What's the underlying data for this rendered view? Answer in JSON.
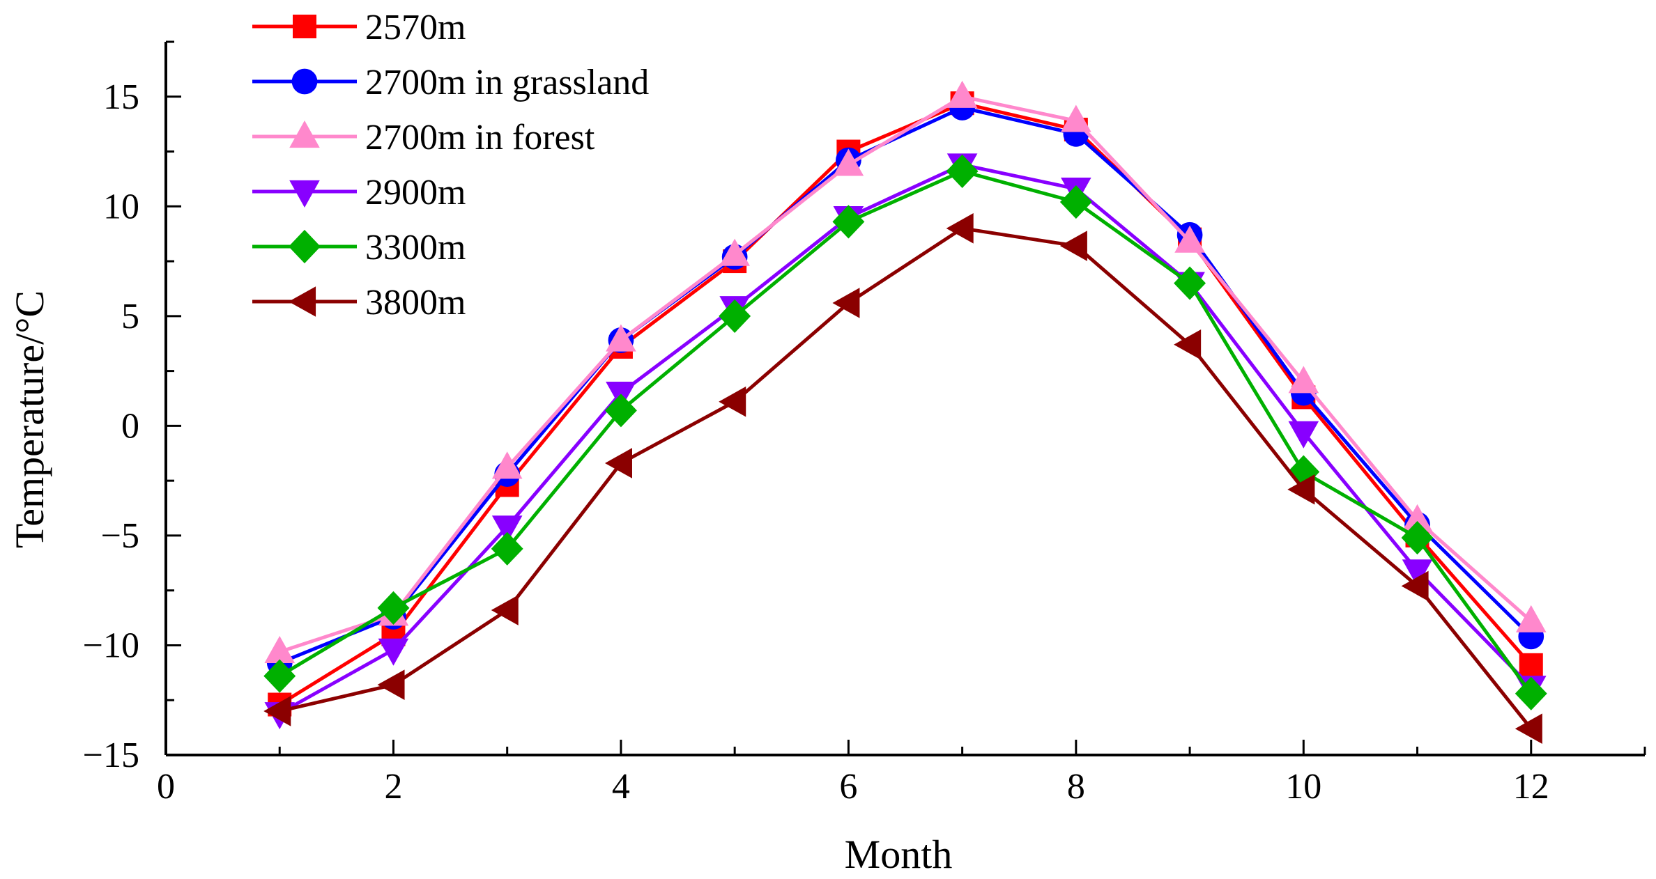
{
  "chart_data": {
    "type": "line",
    "title": "",
    "xlabel": "Month",
    "ylabel": "Temperature/°C",
    "xlim": [
      0,
      13
    ],
    "ylim": [
      -15,
      17.5
    ],
    "xticks": [
      0,
      2,
      4,
      6,
      8,
      10,
      12
    ],
    "yticks": [
      -15,
      -10,
      -5,
      0,
      5,
      10,
      15
    ],
    "x": [
      1,
      2,
      3,
      4,
      5,
      6,
      7,
      8,
      9,
      10,
      11,
      12
    ],
    "legend_position": "top-left",
    "grid": false,
    "series": [
      {
        "name": "2570m",
        "color": "#ff0000",
        "marker": "square",
        "values": [
          -12.7,
          -9.5,
          -2.7,
          3.6,
          7.5,
          12.5,
          14.7,
          13.5,
          8.5,
          1.3,
          -5.0,
          -10.9
        ]
      },
      {
        "name": "2700m in grassland",
        "color": "#0000ff",
        "marker": "circle",
        "values": [
          -10.8,
          -8.7,
          -2.2,
          3.9,
          7.7,
          12.1,
          14.5,
          13.3,
          8.7,
          1.5,
          -4.5,
          -9.6
        ]
      },
      {
        "name": "2700m in forest",
        "color": "#ff88cc",
        "marker": "triangle-up",
        "values": [
          -10.3,
          -8.6,
          -1.9,
          3.9,
          7.8,
          11.9,
          15.0,
          13.9,
          8.4,
          2.0,
          -4.3,
          -8.9
        ]
      },
      {
        "name": "2900m",
        "color": "#8800ff",
        "marker": "triangle-down",
        "values": [
          -13.1,
          -10.2,
          -4.6,
          1.5,
          5.4,
          9.5,
          11.9,
          10.8,
          6.5,
          -0.3,
          -6.6,
          -11.9
        ]
      },
      {
        "name": "3300m",
        "color": "#00b000",
        "marker": "diamond",
        "values": [
          -11.4,
          -8.3,
          -5.6,
          0.7,
          5.0,
          9.3,
          11.6,
          10.2,
          6.5,
          -2.1,
          -5.1,
          -12.2
        ]
      },
      {
        "name": "3800m",
        "color": "#8b0000",
        "marker": "triangle-left",
        "values": [
          -13.0,
          -11.8,
          -8.4,
          -1.7,
          1.1,
          5.6,
          9.0,
          8.2,
          3.7,
          -2.9,
          -7.3,
          -13.8
        ]
      }
    ]
  }
}
